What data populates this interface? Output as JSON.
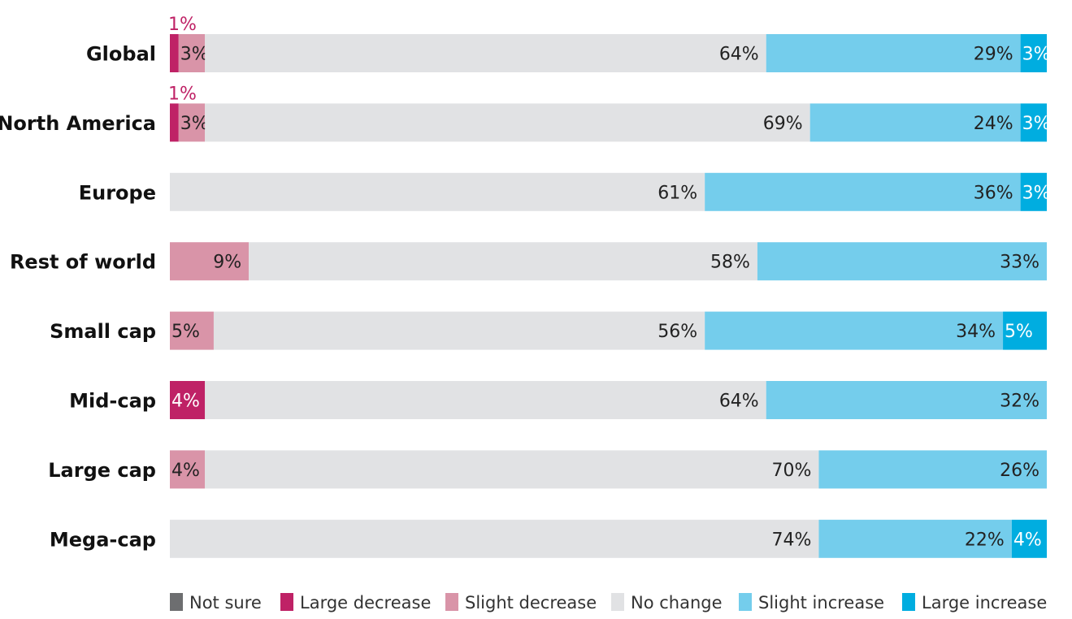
{
  "chart_data": {
    "type": "bar",
    "orientation": "horizontal",
    "stacked": true,
    "categories": [
      "Global",
      "North America",
      "Europe",
      "Rest of world",
      "Small cap",
      "Mid-cap",
      "Large cap",
      "Mega-cap"
    ],
    "series": [
      {
        "name": "Not sure",
        "values": [
          0,
          0,
          0,
          0,
          0,
          0,
          0,
          0
        ]
      },
      {
        "name": "Large decrease",
        "values": [
          1,
          1,
          0,
          0,
          0,
          4,
          0,
          0
        ]
      },
      {
        "name": "Slight decrease",
        "values": [
          3,
          3,
          0,
          9,
          5,
          0,
          4,
          0
        ]
      },
      {
        "name": "No change",
        "values": [
          64,
          69,
          61,
          58,
          56,
          64,
          70,
          74
        ]
      },
      {
        "name": "Slight increase",
        "values": [
          29,
          24,
          36,
          33,
          34,
          32,
          26,
          22
        ]
      },
      {
        "name": "Large increase",
        "values": [
          3,
          3,
          3,
          0,
          5,
          0,
          0,
          4
        ]
      }
    ],
    "value_suffix": "%",
    "xlim": [
      0,
      100
    ],
    "title": "",
    "xlabel": "",
    "ylabel": "",
    "grid": false,
    "legend_position": "bottom",
    "colors": {
      "Not sure": "#6d6e70",
      "Large decrease": "#bf2266",
      "Slight decrease": "#d994a8",
      "No change": "#e1e2e4",
      "Slight increase": "#74cdec",
      "Large increase": "#00ade0"
    },
    "label_colors": {
      "Large decrease": "#ffffff",
      "Slight decrease": "#222222",
      "No change": "#222222",
      "Slight increase": "#222222",
      "Large increase": "#ffffff",
      "outside_small": "#bf2266"
    }
  }
}
